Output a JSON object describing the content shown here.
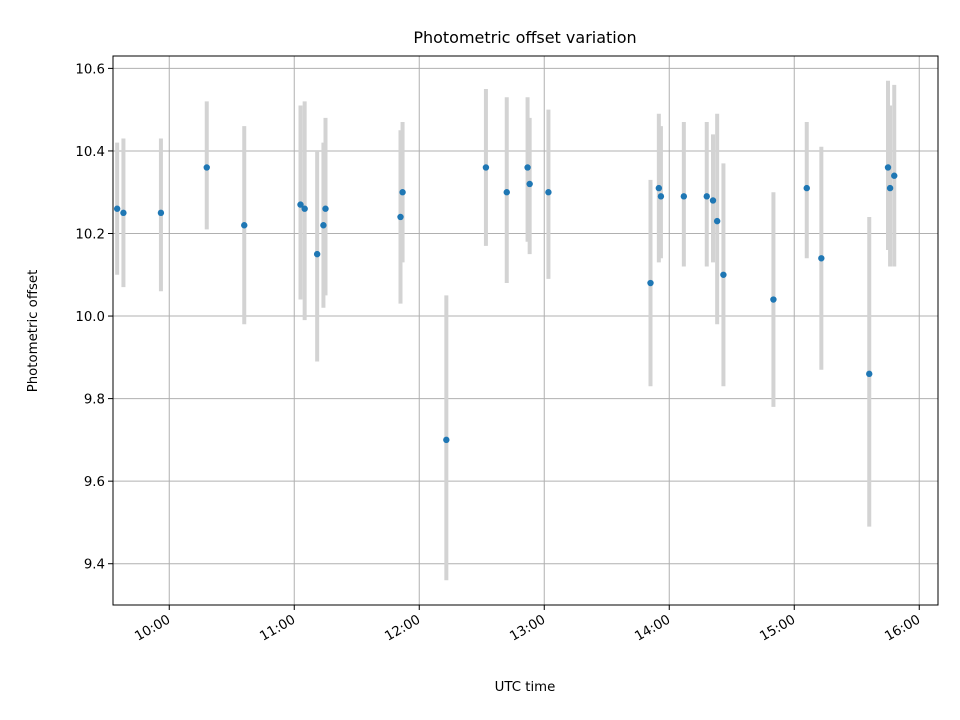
{
  "chart_data": {
    "type": "scatter",
    "title": "Photometric offset variation",
    "xlabel": "UTC time",
    "ylabel": "Photometric offset",
    "x_axis": "time of day (HH:MM, UTC)",
    "xlim": [
      "09:33",
      "16:09"
    ],
    "ylim": [
      9.3,
      10.63
    ],
    "xticks": [
      "10:00",
      "11:00",
      "12:00",
      "13:00",
      "14:00",
      "15:00",
      "16:00"
    ],
    "yticks": [
      "9.4",
      "9.6",
      "9.8",
      "10.0",
      "10.2",
      "10.4",
      "10.6"
    ],
    "grid": true,
    "legend": "none",
    "colors": {
      "marker": "#1f77b4",
      "errorbar": "#d3d3d3",
      "grid": "#b0b0b0"
    },
    "points": [
      {
        "x": "09:35",
        "y": 10.26,
        "ylow": 10.1,
        "yhigh": 10.42
      },
      {
        "x": "09:38",
        "y": 10.25,
        "ylow": 10.07,
        "yhigh": 10.43
      },
      {
        "x": "09:56",
        "y": 10.25,
        "ylow": 10.06,
        "yhigh": 10.43
      },
      {
        "x": "10:18",
        "y": 10.36,
        "ylow": 10.21,
        "yhigh": 10.52
      },
      {
        "x": "10:36",
        "y": 10.22,
        "ylow": 9.98,
        "yhigh": 10.46
      },
      {
        "x": "11:03",
        "y": 10.27,
        "ylow": 10.04,
        "yhigh": 10.51
      },
      {
        "x": "11:05",
        "y": 10.26,
        "ylow": 9.99,
        "yhigh": 10.52
      },
      {
        "x": "11:11",
        "y": 10.15,
        "ylow": 9.89,
        "yhigh": 10.4
      },
      {
        "x": "11:14",
        "y": 10.22,
        "ylow": 10.02,
        "yhigh": 10.42
      },
      {
        "x": "11:15",
        "y": 10.26,
        "ylow": 10.05,
        "yhigh": 10.48
      },
      {
        "x": "11:51",
        "y": 10.24,
        "ylow": 10.03,
        "yhigh": 10.45
      },
      {
        "x": "11:52",
        "y": 10.3,
        "ylow": 10.13,
        "yhigh": 10.47
      },
      {
        "x": "12:13",
        "y": 9.7,
        "ylow": 9.36,
        "yhigh": 10.05
      },
      {
        "x": "12:32",
        "y": 10.36,
        "ylow": 10.17,
        "yhigh": 10.55
      },
      {
        "x": "12:42",
        "y": 10.3,
        "ylow": 10.08,
        "yhigh": 10.53
      },
      {
        "x": "12:52",
        "y": 10.36,
        "ylow": 10.18,
        "yhigh": 10.53
      },
      {
        "x": "12:53",
        "y": 10.32,
        "ylow": 10.15,
        "yhigh": 10.48
      },
      {
        "x": "13:02",
        "y": 10.3,
        "ylow": 10.09,
        "yhigh": 10.5
      },
      {
        "x": "13:51",
        "y": 10.08,
        "ylow": 9.83,
        "yhigh": 10.33
      },
      {
        "x": "13:55",
        "y": 10.31,
        "ylow": 10.13,
        "yhigh": 10.49
      },
      {
        "x": "13:56",
        "y": 10.29,
        "ylow": 10.14,
        "yhigh": 10.46
      },
      {
        "x": "14:07",
        "y": 10.29,
        "ylow": 10.12,
        "yhigh": 10.47
      },
      {
        "x": "14:18",
        "y": 10.29,
        "ylow": 10.12,
        "yhigh": 10.47
      },
      {
        "x": "14:21",
        "y": 10.28,
        "ylow": 10.13,
        "yhigh": 10.44
      },
      {
        "x": "14:23",
        "y": 10.23,
        "ylow": 9.98,
        "yhigh": 10.49
      },
      {
        "x": "14:26",
        "y": 10.1,
        "ylow": 9.83,
        "yhigh": 10.37
      },
      {
        "x": "14:50",
        "y": 10.04,
        "ylow": 9.78,
        "yhigh": 10.3
      },
      {
        "x": "15:06",
        "y": 10.31,
        "ylow": 10.14,
        "yhigh": 10.47
      },
      {
        "x": "15:13",
        "y": 10.14,
        "ylow": 9.87,
        "yhigh": 10.41
      },
      {
        "x": "15:36",
        "y": 9.86,
        "ylow": 9.49,
        "yhigh": 10.24
      },
      {
        "x": "15:45",
        "y": 10.36,
        "ylow": 10.16,
        "yhigh": 10.57
      },
      {
        "x": "15:46",
        "y": 10.31,
        "ylow": 10.12,
        "yhigh": 10.51
      },
      {
        "x": "15:48",
        "y": 10.34,
        "ylow": 10.12,
        "yhigh": 10.56
      }
    ]
  }
}
